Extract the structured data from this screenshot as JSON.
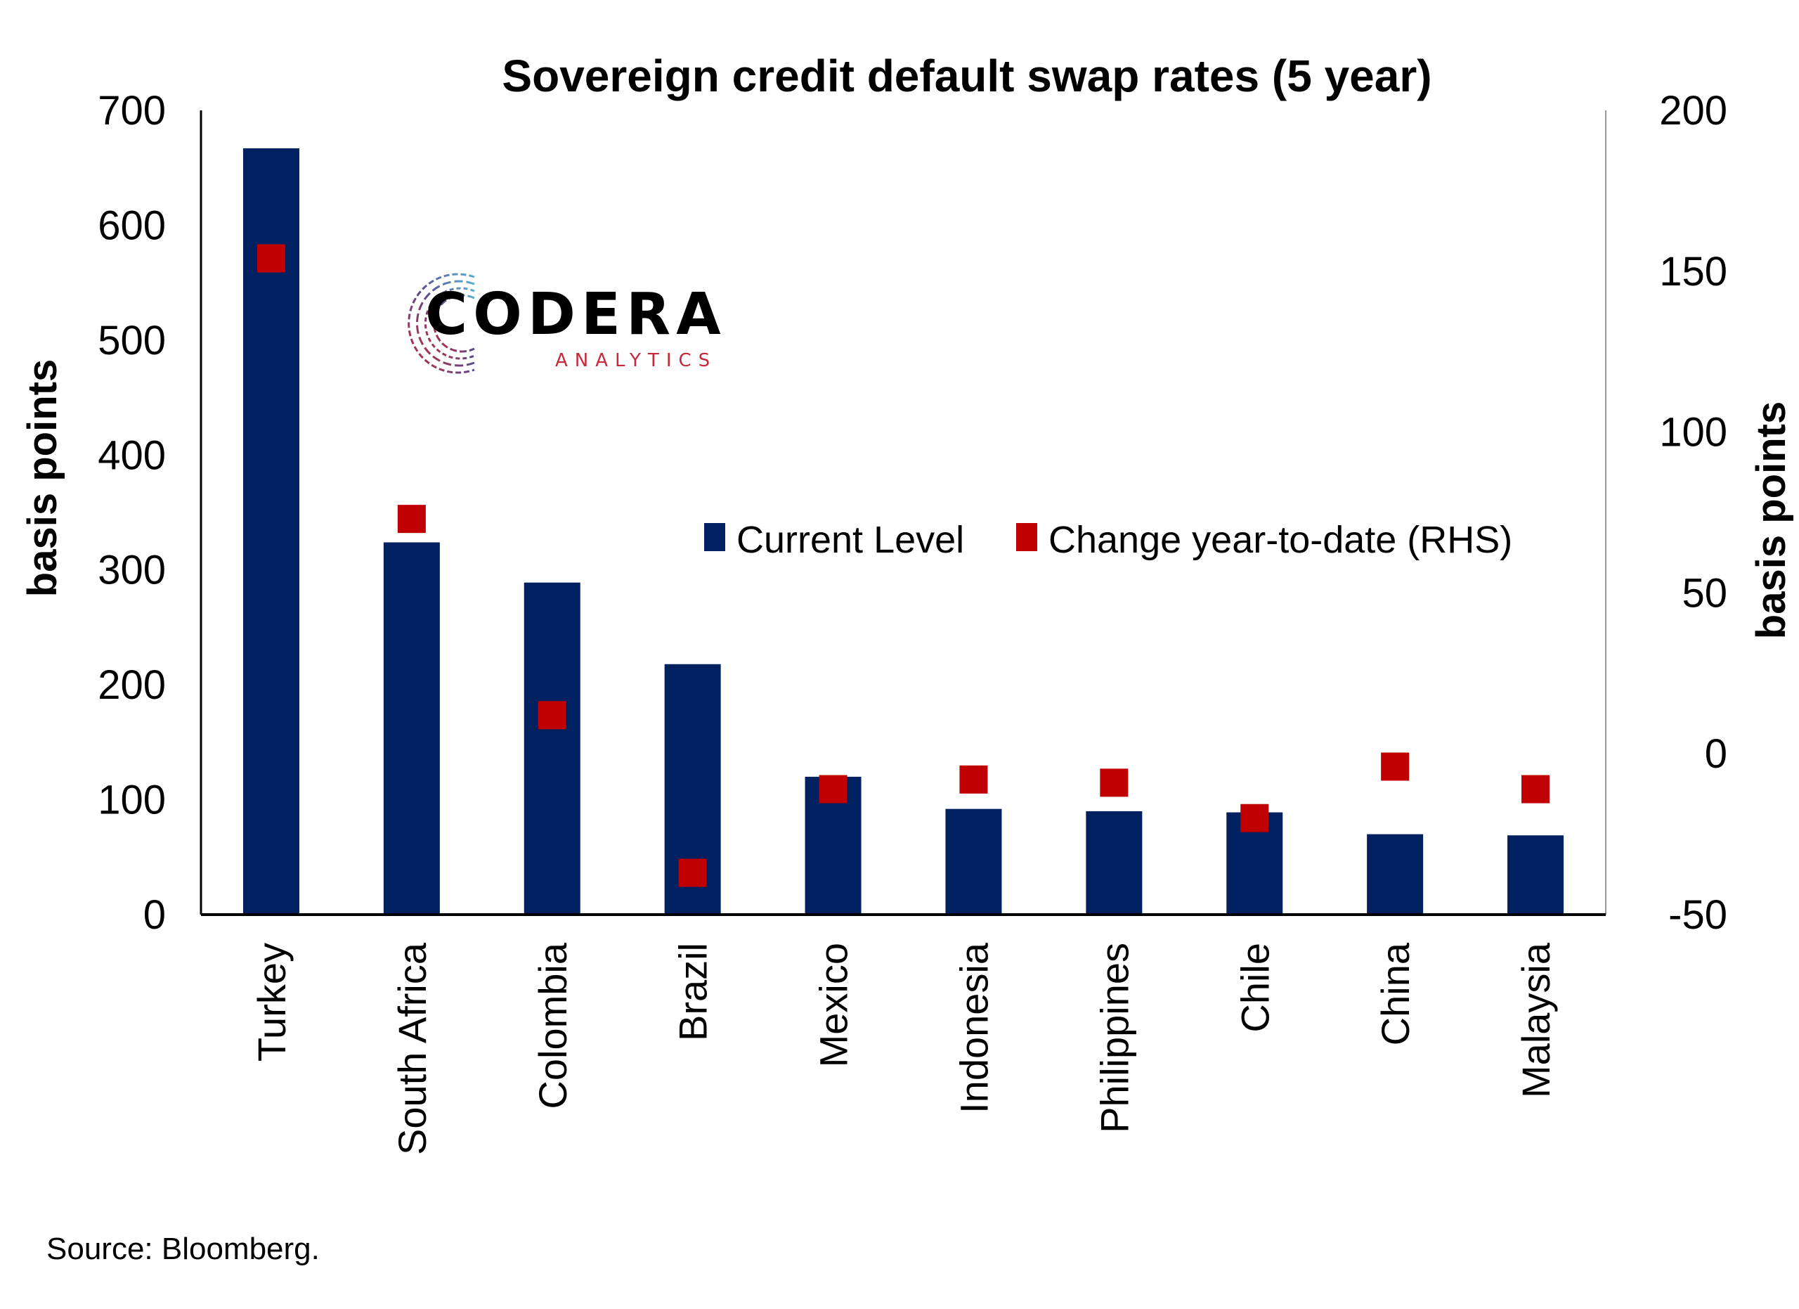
{
  "chart_data": {
    "type": "bar",
    "title": "Sovereign credit default swap rates (5 year)",
    "categories": [
      "Turkey",
      "South Africa",
      "Colombia",
      "Brazil",
      "Mexico",
      "Indonesia",
      "Philippines",
      "Chile",
      "China",
      "Malaysia"
    ],
    "series": [
      {
        "name": "Current Level",
        "type": "bar",
        "axis": "left",
        "color": "#002060",
        "values": [
          667,
          324,
          289,
          218,
          120,
          92,
          90,
          89,
          70,
          69
        ]
      },
      {
        "name": "Change year-to-date (RHS)",
        "type": "marker",
        "axis": "right",
        "color": "#C00000",
        "values": [
          154,
          73,
          12,
          -37,
          -11,
          -8,
          -9,
          -20,
          -4,
          -11
        ]
      }
    ],
    "left_axis": {
      "label": "basis points",
      "ylim": [
        0,
        700
      ],
      "ticks": [
        0,
        100,
        200,
        300,
        400,
        500,
        600,
        700
      ]
    },
    "right_axis": {
      "label": "basis points",
      "ylim": [
        -50,
        200
      ],
      "ticks": [
        -50,
        0,
        50,
        100,
        150,
        200
      ]
    },
    "xlabel": "",
    "grid": false,
    "legend": {
      "placement": "center-right",
      "entries": [
        "Current Level",
        "Change year-to-date (RHS)"
      ]
    }
  },
  "logo": {
    "name": "CODERA",
    "subtitle": "ANALYTICS"
  },
  "footer": {
    "source": "Source: Bloomberg."
  }
}
